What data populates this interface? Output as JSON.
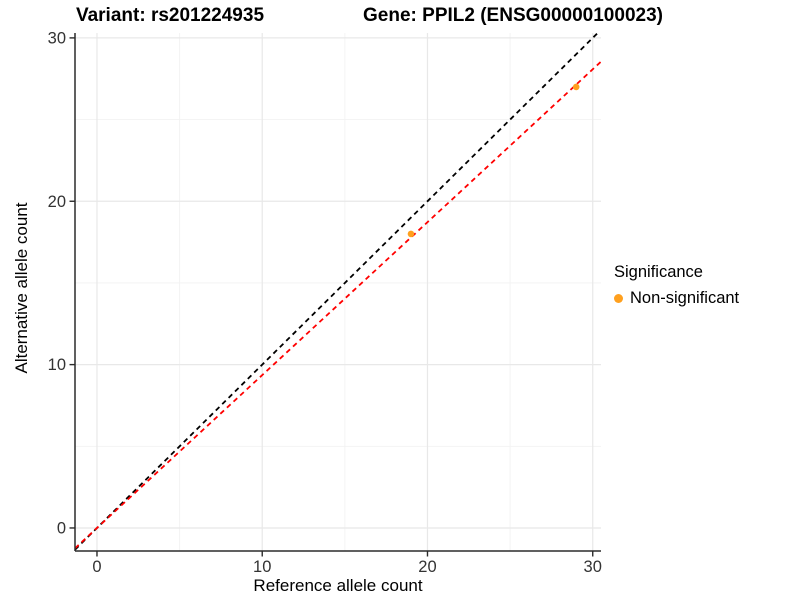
{
  "titles": {
    "left": "Variant: rs201224935",
    "right": "Gene: PPIL2 (ENSG00000100023)"
  },
  "legend": {
    "title": "Significance",
    "items": [
      {
        "label": "Non-significant",
        "marker": "circle-icon",
        "color": "#FFA01E"
      }
    ]
  },
  "chart_data": {
    "type": "scatter",
    "xlabel": "Reference allele count",
    "ylabel": "Alternative allele count",
    "xlim": [
      -1.33,
      30.5
    ],
    "ylim": [
      -1.41,
      30.3
    ],
    "x_major_ticks": [
      0,
      10,
      20,
      30
    ],
    "x_minor_ticks": [
      5,
      15,
      25
    ],
    "y_major_ticks": [
      0,
      10,
      20,
      30
    ],
    "y_minor_ticks": [
      5,
      15,
      25
    ],
    "grid": true,
    "legend_position": "right",
    "series": [
      {
        "name": "Non-significant",
        "color": "#FFA01E",
        "points": [
          {
            "x": 19,
            "y": 18
          },
          {
            "x": 29,
            "y": 27
          }
        ]
      }
    ],
    "reference_lines": [
      {
        "name": "identity-line",
        "slope": 1,
        "intercept": 0,
        "color": "#000000",
        "dash": "dashed"
      },
      {
        "name": "fit-line",
        "slope": 0.936,
        "intercept": 0,
        "color": "#FF0000",
        "dash": "dashed"
      }
    ]
  }
}
